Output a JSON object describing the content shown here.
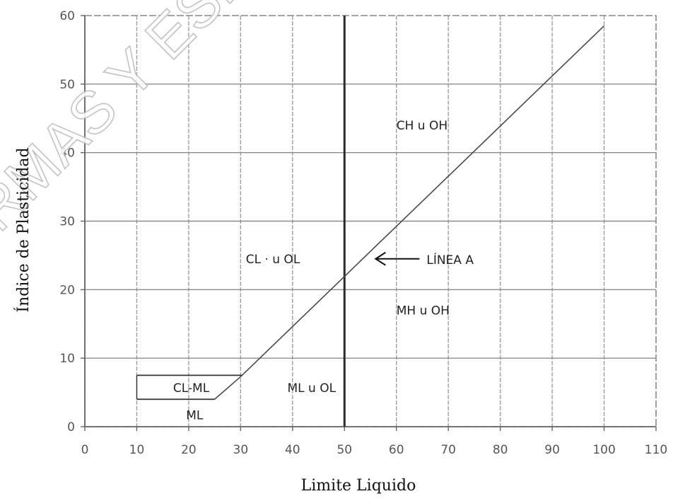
{
  "chart_data": {
    "type": "line",
    "title": "",
    "xlabel": "Limite Liquido",
    "ylabel": "Índice de Plasticidad",
    "xlim": [
      0,
      110
    ],
    "ylim": [
      0,
      60
    ],
    "x_ticks": [
      "0",
      "10",
      "20",
      "30",
      "40",
      "50",
      "60",
      "70",
      "80",
      "90",
      "100",
      "110"
    ],
    "y_ticks": [
      "0",
      "10",
      "20",
      "30",
      "40",
      "50",
      "60"
    ],
    "grid": true,
    "a_line": {
      "x": [
        25,
        30,
        100
      ],
      "y": [
        4,
        7.3,
        58.5
      ]
    },
    "vertical_divider_x": 50,
    "cl_ml_zone": {
      "x_start": 10,
      "y_low": 4,
      "y_high": 7.5
    },
    "regions": [
      {
        "name": "ch_oh",
        "label": "CH  u OH",
        "x": 60,
        "y": 44
      },
      {
        "name": "cl_ol",
        "label": "CL · u OL",
        "x": 31,
        "y": 24.5
      },
      {
        "name": "mh_oh",
        "label": "MH   u OH",
        "x": 60,
        "y": 17
      },
      {
        "name": "cl_ml",
        "label": "CL-ML",
        "x": 17,
        "y": 5.7
      },
      {
        "name": "ml",
        "label": "ML",
        "x": 19.5,
        "y": 1.7
      },
      {
        "name": "ml_ol",
        "label": "ML u OL",
        "x": 39,
        "y": 5.7
      }
    ],
    "annotation": {
      "label": "LÍNEA A",
      "arrow_tip": [
        56,
        24.5
      ]
    }
  },
  "watermark": "NORMAS Y ESPECIFICACIONES"
}
